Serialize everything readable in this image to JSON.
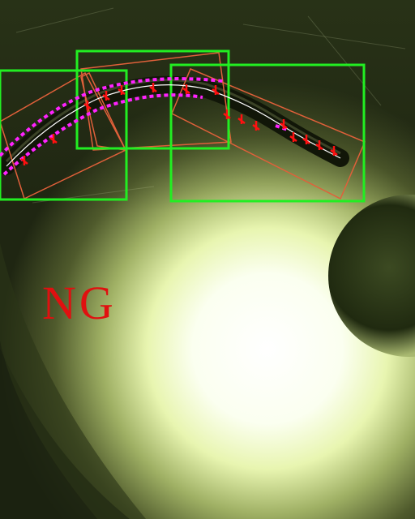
{
  "inspection": {
    "verdict": "NG",
    "verdict_color": "#e01010"
  },
  "overlay_colors": {
    "roi_box": "#22ee22",
    "rotated_box": "#e0603a",
    "edge_points": "#ff22ff",
    "measure_marks": "#ff1010",
    "centerline": "#ffffff"
  },
  "detection": {
    "roi_box_count": 3,
    "rotated_box_count": 4
  }
}
